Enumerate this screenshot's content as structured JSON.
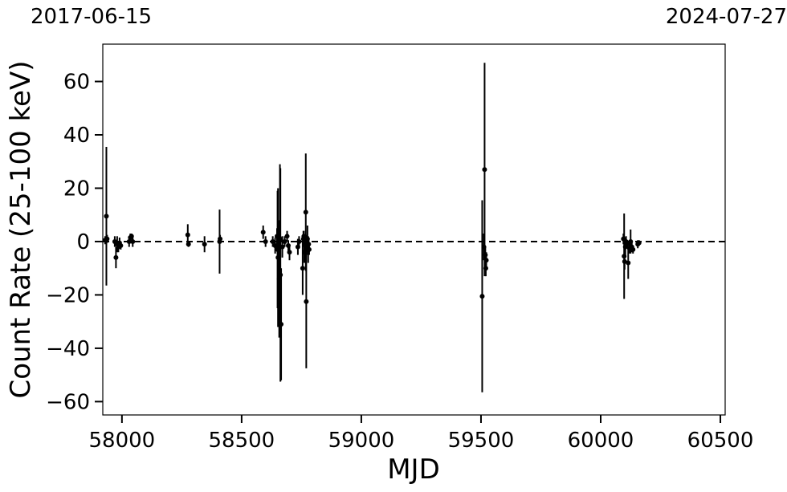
{
  "chart_data": {
    "type": "scatter",
    "title": "",
    "top_labels": {
      "left": "2017-06-15",
      "right": "2024-07-27"
    },
    "xlabel": "MJD",
    "ylabel": "Count Rate (25-100 keV)",
    "xlim": [
      57920,
      60520
    ],
    "ylim": [
      -65,
      74
    ],
    "xticks": [
      58000,
      58500,
      59000,
      59500,
      60000,
      60500
    ],
    "xtick_labels": [
      "58000",
      "58500",
      "59000",
      "59500",
      "60000",
      "60500"
    ],
    "yticks": [
      -60,
      -40,
      -20,
      0,
      20,
      40,
      60
    ],
    "ytick_labels": [
      "−60",
      "−40",
      "−20",
      "0",
      "20",
      "40",
      "60"
    ],
    "reference_line": {
      "y": 0,
      "style": "dashed"
    },
    "grid": false,
    "legend": "none",
    "marker_color": "#000000",
    "points": [
      {
        "x": 57930,
        "y": 0.5,
        "err": 1.5
      },
      {
        "x": 57935,
        "y": 9.5,
        "err": 26
      },
      {
        "x": 57938,
        "y": 1.0,
        "err": 1.5
      },
      {
        "x": 57970,
        "y": 0.0,
        "err": 2.0
      },
      {
        "x": 57975,
        "y": -6.0,
        "err": 4.0
      },
      {
        "x": 57980,
        "y": -1.0,
        "err": 3.0
      },
      {
        "x": 57985,
        "y": -2.0,
        "err": 2.0
      },
      {
        "x": 57990,
        "y": -0.5,
        "err": 2.0
      },
      {
        "x": 57995,
        "y": -1.5,
        "err": 1.5
      },
      {
        "x": 58030,
        "y": 0.0,
        "err": 2.0
      },
      {
        "x": 58035,
        "y": 1.5,
        "err": 1.5
      },
      {
        "x": 58040,
        "y": 2.0,
        "err": 1.0
      },
      {
        "x": 58045,
        "y": 0.0,
        "err": 2.0
      },
      {
        "x": 58275,
        "y": 2.5,
        "err": 4.0
      },
      {
        "x": 58278,
        "y": -1.0,
        "err": 1.0
      },
      {
        "x": 58345,
        "y": -1.0,
        "err": 3.0
      },
      {
        "x": 58408,
        "y": 0.0,
        "err": 12.0
      },
      {
        "x": 58410,
        "y": 1.0,
        "err": 1.5
      },
      {
        "x": 58590,
        "y": 3.5,
        "err": 2.5
      },
      {
        "x": 58600,
        "y": 0.0,
        "err": 2.0
      },
      {
        "x": 58630,
        "y": 0.0,
        "err": 2.0
      },
      {
        "x": 58640,
        "y": -1.5,
        "err": 3.0
      },
      {
        "x": 58648,
        "y": 2.0,
        "err": 3.0
      },
      {
        "x": 58650,
        "y": -3.0,
        "err": 22.0
      },
      {
        "x": 58652,
        "y": -6.0,
        "err": 26.0
      },
      {
        "x": 58657,
        "y": -14.0,
        "err": 22.0
      },
      {
        "x": 58660,
        "y": 1.0,
        "err": 28.0
      },
      {
        "x": 58662,
        "y": -12.5,
        "err": 40.0
      },
      {
        "x": 58665,
        "y": -31.0,
        "err": 21.0
      },
      {
        "x": 58670,
        "y": -2.0,
        "err": 4.0
      },
      {
        "x": 58680,
        "y": 0.0,
        "err": 2.0
      },
      {
        "x": 58690,
        "y": 2.0,
        "err": 2.0
      },
      {
        "x": 58695,
        "y": -1.5,
        "err": 2.0
      },
      {
        "x": 58700,
        "y": -4.0,
        "err": 3.0
      },
      {
        "x": 58735,
        "y": -2.0,
        "err": 3.0
      },
      {
        "x": 58740,
        "y": 0.0,
        "err": 2.0
      },
      {
        "x": 58755,
        "y": -10.0,
        "err": 10.0
      },
      {
        "x": 58758,
        "y": 1.0,
        "err": 3.0
      },
      {
        "x": 58760,
        "y": 2.0,
        "err": 2.0
      },
      {
        "x": 58762,
        "y": -4.0,
        "err": 4.0
      },
      {
        "x": 58765,
        "y": -0.5,
        "err": 3.0
      },
      {
        "x": 58768,
        "y": 11.0,
        "err": 22.0
      },
      {
        "x": 58770,
        "y": -22.5,
        "err": 25.0
      },
      {
        "x": 58772,
        "y": -2.0,
        "err": 3.0
      },
      {
        "x": 58775,
        "y": 1.0,
        "err": 5.0
      },
      {
        "x": 58778,
        "y": -3.0,
        "err": 5.0
      },
      {
        "x": 58780,
        "y": -1.0,
        "err": 2.0
      },
      {
        "x": 58782,
        "y": -3.0,
        "err": 2.0
      },
      {
        "x": 59505,
        "y": -20.5,
        "err": 36.0
      },
      {
        "x": 59512,
        "y": -2.0,
        "err": 5.0
      },
      {
        "x": 59515,
        "y": 27.0,
        "err": 40.0
      },
      {
        "x": 59518,
        "y": -5.0,
        "err": 3.0
      },
      {
        "x": 59520,
        "y": -10.0,
        "err": 3.0
      },
      {
        "x": 59522,
        "y": -7.0,
        "err": 3.0
      },
      {
        "x": 60095,
        "y": 1.0,
        "err": 2.0
      },
      {
        "x": 60098,
        "y": -5.5,
        "err": 16.0
      },
      {
        "x": 60100,
        "y": -7.5,
        "err": 3.0
      },
      {
        "x": 60103,
        "y": -2.0,
        "err": 3.0
      },
      {
        "x": 60106,
        "y": 0.0,
        "err": 2.0
      },
      {
        "x": 60110,
        "y": -1.0,
        "err": 1.5
      },
      {
        "x": 60115,
        "y": -8.0,
        "err": 6.0
      },
      {
        "x": 60120,
        "y": -2.5,
        "err": 2.0
      },
      {
        "x": 60125,
        "y": 0.0,
        "err": 4.5
      },
      {
        "x": 60130,
        "y": -2.0,
        "err": 2.0
      },
      {
        "x": 60135,
        "y": -3.0,
        "err": 1.5
      },
      {
        "x": 60155,
        "y": -1.0,
        "err": 1.5
      },
      {
        "x": 60160,
        "y": -0.5,
        "err": 1.0
      }
    ]
  }
}
